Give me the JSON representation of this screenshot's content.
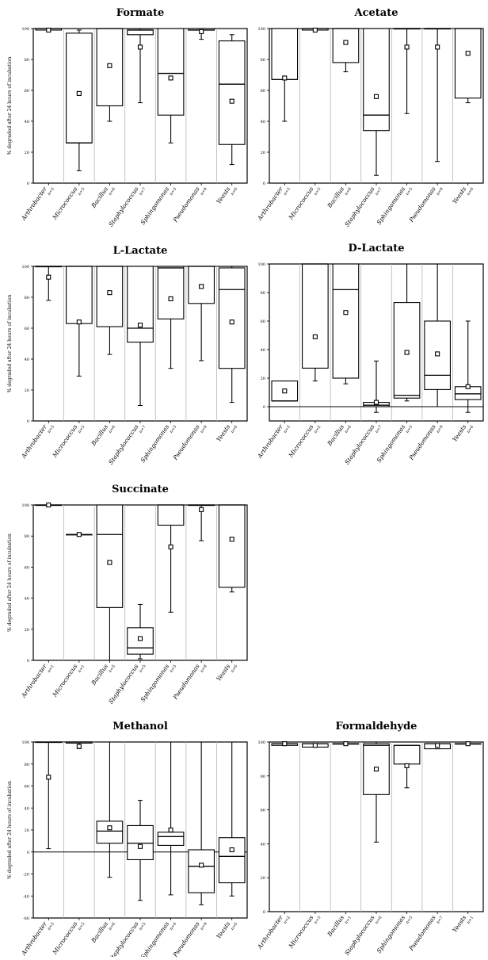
{
  "figure": {
    "charts": [
      {
        "title": "Formate",
        "ylabel": "% degraded after 24 hours of incubation",
        "ylim": [
          0,
          100
        ],
        "yticks": [
          0,
          20,
          40,
          60,
          80,
          100
        ],
        "zero_line": false
      },
      {
        "title": "Acetate",
        "ylabel": "",
        "ylim": [
          0,
          100
        ],
        "yticks": [
          0,
          20,
          40,
          60,
          80,
          100
        ],
        "zero_line": false
      },
      {
        "title": "L-Lactate",
        "ylabel": "% degraded after 24 hours of incubation",
        "ylim": [
          0,
          100
        ],
        "yticks": [
          0,
          20,
          40,
          60,
          80,
          100
        ],
        "zero_line": false
      },
      {
        "title": "D-Lactate",
        "ylabel": "",
        "ylim": [
          -10,
          100
        ],
        "yticks": [
          0,
          20,
          40,
          60,
          80,
          100
        ],
        "zero_line": true
      },
      {
        "title": "Succinate",
        "ylabel": "% degraded after 24 hours of incubation",
        "ylim": [
          0,
          100
        ],
        "yticks": [
          0,
          20,
          40,
          60,
          80,
          100
        ],
        "zero_line": false
      },
      {
        "title": "Methanol",
        "ylabel": "% degraded after 24 hours of incubation",
        "ylim": [
          -60,
          100
        ],
        "yticks": [
          -60,
          -40,
          -20,
          0,
          20,
          40,
          60,
          80,
          100
        ],
        "zero_line": true
      },
      {
        "title": "Formaldehyde",
        "ylabel": "",
        "ylim": [
          0,
          100
        ],
        "yticks": [
          0,
          20,
          40,
          60,
          80,
          100
        ],
        "zero_line": false
      }
    ]
  },
  "chart_data": [
    {
      "type": "box",
      "title": "Formate",
      "ylabel": "% degraded after 24 hours of incubation",
      "ylim": [
        0,
        100
      ],
      "categories": [
        "Arthrobacter",
        "Micrococcus",
        "Bacillus",
        "Staphylococcus",
        "Sphingomonas",
        "Pseudomonas",
        "Yeasts"
      ],
      "n_labels": [
        "n=3",
        "n=3",
        "n=6",
        "n=7",
        "n=3",
        "n=9",
        "n=6"
      ],
      "boxes": [
        {
          "min": 99,
          "q1": 99,
          "median": 100,
          "q3": 100,
          "max": 100,
          "mean": 99
        },
        {
          "min": 8,
          "q1": 26,
          "median": 26,
          "q3": 97,
          "max": 99,
          "mean": 58
        },
        {
          "min": 40,
          "q1": 50,
          "median": 100,
          "q3": 100,
          "max": 100,
          "mean": 76
        },
        {
          "min": 52,
          "q1": 96,
          "median": 99,
          "q3": 99,
          "max": 100,
          "mean": 88
        },
        {
          "min": 26,
          "q1": 44,
          "median": 71,
          "q3": 100,
          "max": 100,
          "mean": 68
        },
        {
          "min": 93,
          "q1": 99,
          "median": 99,
          "q3": 100,
          "max": 100,
          "mean": 98
        },
        {
          "min": 12,
          "q1": 25,
          "median": 64,
          "q3": 92,
          "max": 96,
          "mean": 53
        }
      ]
    },
    {
      "type": "box",
      "title": "Acetate",
      "ylim": [
        0,
        100
      ],
      "categories": [
        "Arthrobacter",
        "Micrococcus",
        "Bacillus",
        "Staphylococcus",
        "Sphingomonas",
        "Pseudomonas",
        "Yeasts"
      ],
      "n_labels": [
        "n=3",
        "n=3",
        "n=6",
        "n=7",
        "n=3",
        "n=9",
        "n=6"
      ],
      "boxes": [
        {
          "min": 40,
          "q1": 67,
          "median": 67,
          "q3": 100,
          "max": 100,
          "mean": 68
        },
        {
          "min": 99,
          "q1": 99,
          "median": 100,
          "q3": 100,
          "max": 100,
          "mean": 99
        },
        {
          "min": 72,
          "q1": 78,
          "median": 100,
          "q3": 100,
          "max": 100,
          "mean": 91
        },
        {
          "min": 5,
          "q1": 34,
          "median": 44,
          "q3": 100,
          "max": 100,
          "mean": 56
        },
        {
          "min": 45,
          "q1": 100,
          "median": 100,
          "q3": 100,
          "max": 100,
          "mean": 88
        },
        {
          "min": 14,
          "q1": 100,
          "median": 100,
          "q3": 100,
          "max": 100,
          "mean": 88
        },
        {
          "min": 52,
          "q1": 55,
          "median": 100,
          "q3": 100,
          "max": 100,
          "mean": 84
        }
      ]
    },
    {
      "type": "box",
      "title": "L-Lactate",
      "ylabel": "% degraded after 24 hours of incubation",
      "ylim": [
        0,
        100
      ],
      "categories": [
        "Arthrobacter",
        "Micrococcus",
        "Bacillus",
        "Staphylococcus",
        "Sphingomonas",
        "Pseudomonas",
        "Yeasts"
      ],
      "n_labels": [
        "n=3",
        "n=3",
        "n=6",
        "n=7",
        "n=3",
        "n=9",
        "n=6"
      ],
      "boxes": [
        {
          "min": 78,
          "q1": 100,
          "median": 100,
          "q3": 100,
          "max": 100,
          "mean": 93
        },
        {
          "min": 29,
          "q1": 63,
          "median": 100,
          "q3": 100,
          "max": 100,
          "mean": 64
        },
        {
          "min": 43,
          "q1": 61,
          "median": 100,
          "q3": 100,
          "max": 100,
          "mean": 83
        },
        {
          "min": 10,
          "q1": 51,
          "median": 60,
          "q3": 100,
          "max": 100,
          "mean": 62
        },
        {
          "min": 34,
          "q1": 66,
          "median": 99,
          "q3": 100,
          "max": 100,
          "mean": 79
        },
        {
          "min": 39,
          "q1": 76,
          "median": 100,
          "q3": 100,
          "max": 100,
          "mean": 87
        },
        {
          "min": 12,
          "q1": 34,
          "median": 85,
          "q3": 99,
          "max": 100,
          "mean": 64
        }
      ]
    },
    {
      "type": "box",
      "title": "D-Lactate",
      "ylim": [
        -10,
        100
      ],
      "categories": [
        "Arthrobacter",
        "Micrococcus",
        "Bacillus",
        "Staphylococcus",
        "Sphingomonas",
        "Pseudomonas",
        "Yeasts"
      ],
      "n_labels": [
        "n=3",
        "n=2",
        "n=6",
        "n=7",
        "n=3",
        "n=9",
        "n=6"
      ],
      "boxes": [
        {
          "min": 4,
          "q1": 4,
          "median": 4,
          "q3": 18,
          "max": 18,
          "mean": 11
        },
        {
          "min": 18,
          "q1": 27,
          "median": 100,
          "q3": 100,
          "max": 100,
          "mean": 49
        },
        {
          "min": 16,
          "q1": 20,
          "median": 82,
          "q3": 100,
          "max": 100,
          "mean": 66
        },
        {
          "min": -4,
          "q1": 0,
          "median": 1,
          "q3": 3,
          "max": 32,
          "mean": 3
        },
        {
          "min": 4,
          "q1": 6,
          "median": 8,
          "q3": 73,
          "max": 100,
          "mean": 38
        },
        {
          "min": 0,
          "q1": 12,
          "median": 22,
          "q3": 60,
          "max": 100,
          "mean": 37
        },
        {
          "min": -4,
          "q1": 5,
          "median": 9,
          "q3": 14,
          "max": 60,
          "mean": 14
        }
      ]
    },
    {
      "type": "box",
      "title": "Succinate",
      "ylabel": "% degraded after 24 hours of incubation",
      "ylim": [
        0,
        100
      ],
      "categories": [
        "Arthrobacter",
        "Micrococcus",
        "Bacillus",
        "Staphylococcus",
        "Sphingomonas",
        "Pseudomonas",
        "Yeasts"
      ],
      "n_labels": [
        "n=1",
        "n=1",
        "n=5",
        "n=5",
        "n=3",
        "n=8",
        "n=6"
      ],
      "boxes": [
        {
          "min": 100,
          "q1": 100,
          "median": 100,
          "q3": 100,
          "max": 100,
          "mean": 100
        },
        {
          "min": 81,
          "q1": 81,
          "median": 81,
          "q3": 81,
          "max": 81,
          "mean": 81
        },
        {
          "min": 0,
          "q1": 34,
          "median": 81,
          "q3": 100,
          "max": 100,
          "mean": 63
        },
        {
          "min": 1,
          "q1": 4,
          "median": 8,
          "q3": 21,
          "max": 36,
          "mean": 14
        },
        {
          "min": 31,
          "q1": 87,
          "median": 100,
          "q3": 100,
          "max": 100,
          "mean": 73
        },
        {
          "min": 77,
          "q1": 100,
          "median": 100,
          "q3": 100,
          "max": 100,
          "mean": 97
        },
        {
          "min": 44,
          "q1": 47,
          "median": 100,
          "q3": 100,
          "max": 100,
          "mean": 78
        }
      ]
    },
    {
      "type": "box",
      "title": "Methanol",
      "ylabel": "% degraded after 24 hours of incubation",
      "ylim": [
        -60,
        100
      ],
      "categories": [
        "Arthrobacter",
        "Micrococcus",
        "Bacillus",
        "Staphylococcus",
        "Sphingomonas",
        "Pseudomonas",
        "Yeasts"
      ],
      "n_labels": [
        "n=3",
        "n=3",
        "n=6",
        "n=5",
        "n=4",
        "n=9",
        "n=6"
      ],
      "boxes": [
        {
          "min": 3,
          "q1": 100,
          "median": 100,
          "q3": 100,
          "max": 100,
          "mean": 68
        },
        {
          "min": 94,
          "q1": 99,
          "median": 100,
          "q3": 100,
          "max": 100,
          "mean": 96
        },
        {
          "min": -23,
          "q1": 8,
          "median": 19,
          "q3": 28,
          "max": 100,
          "mean": 22
        },
        {
          "min": -44,
          "q1": -7,
          "median": 8,
          "q3": 24,
          "max": 47,
          "mean": 5
        },
        {
          "min": -39,
          "q1": 6,
          "median": 14,
          "q3": 18,
          "max": 100,
          "mean": 20
        },
        {
          "min": -48,
          "q1": -37,
          "median": -13,
          "q3": 2,
          "max": 100,
          "mean": -12
        },
        {
          "min": -40,
          "q1": -28,
          "median": -4,
          "q3": 13,
          "max": 100,
          "mean": 2
        }
      ]
    },
    {
      "type": "box",
      "title": "Formaldehyde",
      "ylim": [
        0,
        100
      ],
      "categories": [
        "Arthrobacter",
        "Micrococcus",
        "Bacillus",
        "Staphylococcus",
        "Sphingomonas",
        "Pseudomonas",
        "Yeasts"
      ],
      "n_labels": [
        "n=2",
        "n=3",
        "n=1",
        "n=6",
        "n=3",
        "n=7",
        "n=1"
      ],
      "boxes": [
        {
          "min": 98,
          "q1": 98,
          "median": 99,
          "q3": 99,
          "max": 100,
          "mean": 99
        },
        {
          "min": 97,
          "q1": 97,
          "median": 99,
          "q3": 99,
          "max": 99,
          "mean": 98
        },
        {
          "min": 99,
          "q1": 99,
          "median": 99,
          "q3": 99,
          "max": 99,
          "mean": 99
        },
        {
          "min": 41,
          "q1": 69,
          "median": 98,
          "q3": 99,
          "max": 100,
          "mean": 84
        },
        {
          "min": 73,
          "q1": 87,
          "median": 98,
          "q3": 98,
          "max": 98,
          "mean": 86
        },
        {
          "min": 96,
          "q1": 96,
          "median": 99,
          "q3": 99,
          "max": 99,
          "mean": 98
        },
        {
          "min": 99,
          "q1": 99,
          "median": 99,
          "q3": 99,
          "max": 99,
          "mean": 99
        }
      ]
    }
  ]
}
